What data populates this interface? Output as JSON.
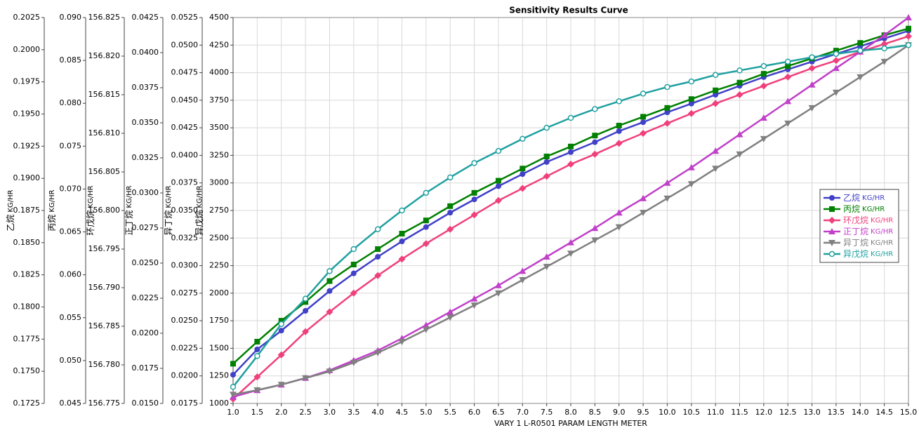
{
  "chart_data": {
    "type": "line",
    "title": "Sensitivity Results Curve",
    "x_label": "VARY   1 L-R0501 PARAM LENGTH METER",
    "x": [
      1,
      1.5,
      2,
      2.5,
      3,
      3.5,
      4,
      4.5,
      5,
      5.5,
      6,
      6.5,
      7,
      7.5,
      8,
      8.5,
      9,
      9.5,
      10,
      10.5,
      11,
      11.5,
      12,
      12.5,
      13,
      13.5,
      14,
      14.5,
      15
    ],
    "xlim": [
      1,
      15
    ],
    "xticks": [
      {
        "value": 1,
        "label": "1.0"
      },
      1.5,
      {
        "value": 2,
        "label": "2.0"
      },
      2.5,
      {
        "value": 3,
        "label": "3.0"
      },
      3.5,
      {
        "value": 4,
        "label": "4.0"
      },
      4.5,
      {
        "value": 5,
        "label": "5.0"
      },
      5.5,
      {
        "value": 6,
        "label": "6.0"
      },
      6.5,
      {
        "value": 7,
        "label": "7.0"
      },
      7.5,
      {
        "value": 8,
        "label": "8.0"
      },
      8.5,
      {
        "value": 9,
        "label": "9.0"
      },
      9.5,
      {
        "value": 10,
        "label": "10.0"
      },
      10.5,
      {
        "value": 11,
        "label": "11.0"
      },
      11.5,
      {
        "value": 12,
        "label": "12.0"
      },
      12.5,
      {
        "value": 13,
        "label": "13.0"
      },
      13.5,
      {
        "value": 14,
        "label": "14.0"
      },
      14.5,
      {
        "value": 15,
        "label": "15.0"
      }
    ],
    "grid": true,
    "legend": "right",
    "series": [
      {
        "name": "乙烷",
        "unit": "KG/HR",
        "color": "#4040c8",
        "marker": "circle",
        "ylim": [
          0.1725,
          0.2025
        ],
        "yticks": [
          0.1725,
          {
            "value": 0.175,
            "label": "0.1750"
          },
          0.1775,
          {
            "value": 0.18,
            "label": "0.1800"
          },
          0.1825,
          {
            "value": 0.185,
            "label": "0.1850"
          },
          0.1875,
          {
            "value": 0.19,
            "label": "0.1900"
          },
          0.1925,
          {
            "value": 0.195,
            "label": "0.1950"
          },
          0.1975,
          {
            "value": 0.2,
            "label": "0.2000"
          },
          0.2025
        ],
        "values": [
          0.17473,
          0.1767,
          0.17816,
          0.1797,
          0.18124,
          0.18261,
          0.1839,
          0.1851,
          0.18621,
          0.18733,
          0.18836,
          0.18939,
          0.19033,
          0.19127,
          0.19204,
          0.19281,
          0.19367,
          0.19436,
          0.19513,
          0.19581,
          0.1965,
          0.19719,
          0.19787,
          0.19847,
          0.19907,
          0.19967,
          0.20027,
          0.20087,
          0.20147
        ]
      },
      {
        "name": "丙烷",
        "unit": "KG/HR",
        "color": "#008000",
        "marker": "square",
        "ylim": [
          0.045,
          0.09
        ],
        "yticks": [
          0.045,
          {
            "value": 0.05,
            "label": "0.050"
          },
          0.055,
          {
            "value": 0.06,
            "label": "0.060"
          },
          0.065,
          {
            "value": 0.07,
            "label": "0.070"
          },
          0.075,
          {
            "value": 0.08,
            "label": "0.080"
          },
          0.085,
          {
            "value": 0.09,
            "label": "0.090"
          }
        ],
        "values": [
          0.04963,
          0.0522,
          0.05464,
          0.05683,
          0.05927,
          0.0612,
          0.063,
          0.0648,
          0.06634,
          0.06801,
          0.06956,
          0.07097,
          0.07239,
          0.0738,
          0.07496,
          0.07624,
          0.0774,
          0.07843,
          0.07946,
          0.08049,
          0.08151,
          0.08241,
          0.08344,
          0.08434,
          0.08524,
          0.08614,
          0.08704,
          0.08794,
          0.08871
        ]
      },
      {
        "name": "环戊烷",
        "unit": "KG/HR",
        "color": "#f0407c",
        "marker": "diamond",
        "ylim": [
          156.775,
          156.825
        ],
        "yticks": [
          156.775,
          {
            "value": 156.78,
            "label": "156.780"
          },
          156.785,
          {
            "value": 156.79,
            "label": "156.790"
          },
          156.795,
          {
            "value": 156.8,
            "label": "156.800"
          },
          156.805,
          {
            "value": 156.81,
            "label": "156.810"
          },
          156.815,
          {
            "value": 156.82,
            "label": "156.820"
          },
          156.825
        ],
        "values": [
          156.77557,
          156.77843,
          156.78129,
          156.78429,
          156.78686,
          156.78929,
          156.79157,
          156.79371,
          156.79571,
          156.79757,
          156.79943,
          156.80129,
          156.80286,
          156.80443,
          156.806,
          156.80729,
          156.80871,
          156.81,
          156.81129,
          156.81257,
          156.81386,
          156.815,
          156.81614,
          156.81729,
          156.81843,
          156.81943,
          156.82057,
          156.82157,
          156.82257
        ]
      },
      {
        "name": "正丁烷",
        "unit": "KG/HR",
        "color": "#c040c8",
        "marker": "triangle-up",
        "ylim": [
          0.015,
          0.0425
        ],
        "yticks": [
          {
            "value": 0.015,
            "label": "0.0150"
          },
          0.0175,
          {
            "value": 0.02,
            "label": "0.0200"
          },
          0.0225,
          {
            "value": 0.025,
            "label": "0.0250"
          },
          0.0275,
          {
            "value": 0.03,
            "label": "0.0300"
          },
          0.0325,
          {
            "value": 0.035,
            "label": "0.0350"
          },
          0.0375,
          {
            "value": 0.04,
            "label": "0.0400"
          },
          0.0425
        ],
        "values": [
          0.01547,
          0.01594,
          0.01634,
          0.01681,
          0.01736,
          0.01806,
          0.01877,
          0.01964,
          0.02058,
          0.02152,
          0.02246,
          0.02341,
          0.02443,
          0.02545,
          0.02647,
          0.02749,
          0.02859,
          0.02961,
          0.03071,
          0.03181,
          0.03299,
          0.03417,
          0.03535,
          0.03653,
          0.03771,
          0.03889,
          0.04006,
          0.04124,
          0.0425
        ]
      },
      {
        "name": "异丁烷",
        "unit": "KG/HR",
        "color": "#808080",
        "marker": "triangle-down",
        "ylim": [
          0.0175,
          0.0525
        ],
        "yticks": [
          0.0175,
          {
            "value": 0.02,
            "label": "0.0200"
          },
          0.0225,
          {
            "value": 0.025,
            "label": "0.0250"
          },
          0.0275,
          {
            "value": 0.03,
            "label": "0.0300"
          },
          0.0325,
          {
            "value": 0.035,
            "label": "0.0350"
          },
          0.0375,
          {
            "value": 0.04,
            "label": "0.0400"
          },
          0.0425,
          {
            "value": 0.045,
            "label": "0.0450"
          },
          0.0475,
          {
            "value": 0.05,
            "label": "0.0500"
          },
          0.0525
        ],
        "values": [
          0.0183,
          0.0187,
          0.0192,
          0.0198,
          0.0204,
          0.0212,
          0.0221,
          0.0231,
          0.0242,
          0.0253,
          0.0264,
          0.0275,
          0.0287,
          0.0299,
          0.0311,
          0.0323,
          0.0335,
          0.0348,
          0.0361,
          0.0374,
          0.0388,
          0.0401,
          0.0415,
          0.0429,
          0.0443,
          0.0457,
          0.0471,
          0.0485,
          0.05
        ]
      },
      {
        "name": "异戊烷",
        "unit": "KG/HR",
        "color": "#20a0a0",
        "marker": "open-circle",
        "ylim": [
          1000,
          4500
        ],
        "yticks": [
          1000,
          1250,
          1500,
          1750,
          2000,
          2250,
          2500,
          2750,
          3000,
          3250,
          3500,
          3750,
          4000,
          4250,
          4500
        ],
        "values": [
          1150,
          1430,
          1720,
          1950,
          2200,
          2400,
          2580,
          2750,
          2910,
          3050,
          3180,
          3290,
          3400,
          3500,
          3590,
          3670,
          3740,
          3810,
          3870,
          3920,
          3980,
          4020,
          4060,
          4100,
          4140,
          4170,
          4200,
          4220,
          4250
        ]
      }
    ]
  }
}
